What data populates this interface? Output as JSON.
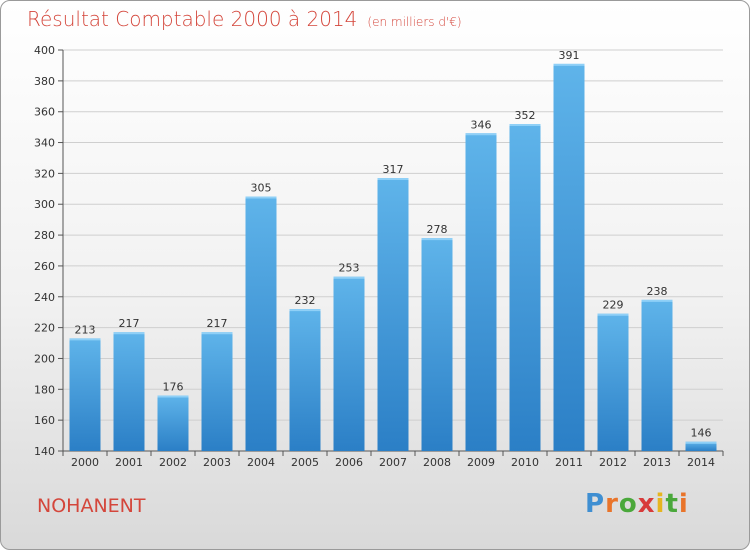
{
  "header": {
    "title": "Résultat Comptable 2000 à 2014",
    "subtitle": "(en milliers d'€)"
  },
  "footer": {
    "commune": "NOHANENT",
    "logo": "Proxiti"
  },
  "colors": {
    "title": "#d4463b",
    "bar_top": "#5fb4ea",
    "bar_bottom": "#2b7fc6",
    "grid": "#cfcfcf"
  },
  "chart_data": {
    "type": "bar",
    "title": "Résultat Comptable 2000 à 2014",
    "subtitle": "(en milliers d'€)",
    "xlabel": "",
    "ylabel": "",
    "categories": [
      "2000",
      "2001",
      "2002",
      "2003",
      "2004",
      "2005",
      "2006",
      "2007",
      "2008",
      "2009",
      "2010",
      "2011",
      "2012",
      "2013",
      "2014"
    ],
    "values": [
      213,
      217,
      176,
      217,
      305,
      232,
      253,
      317,
      278,
      346,
      352,
      391,
      229,
      238,
      146
    ],
    "ylim": [
      140,
      400
    ],
    "yticks": [
      140,
      160,
      180,
      200,
      220,
      240,
      260,
      280,
      300,
      320,
      340,
      360,
      380,
      400
    ],
    "grid": true,
    "legend": "none"
  }
}
